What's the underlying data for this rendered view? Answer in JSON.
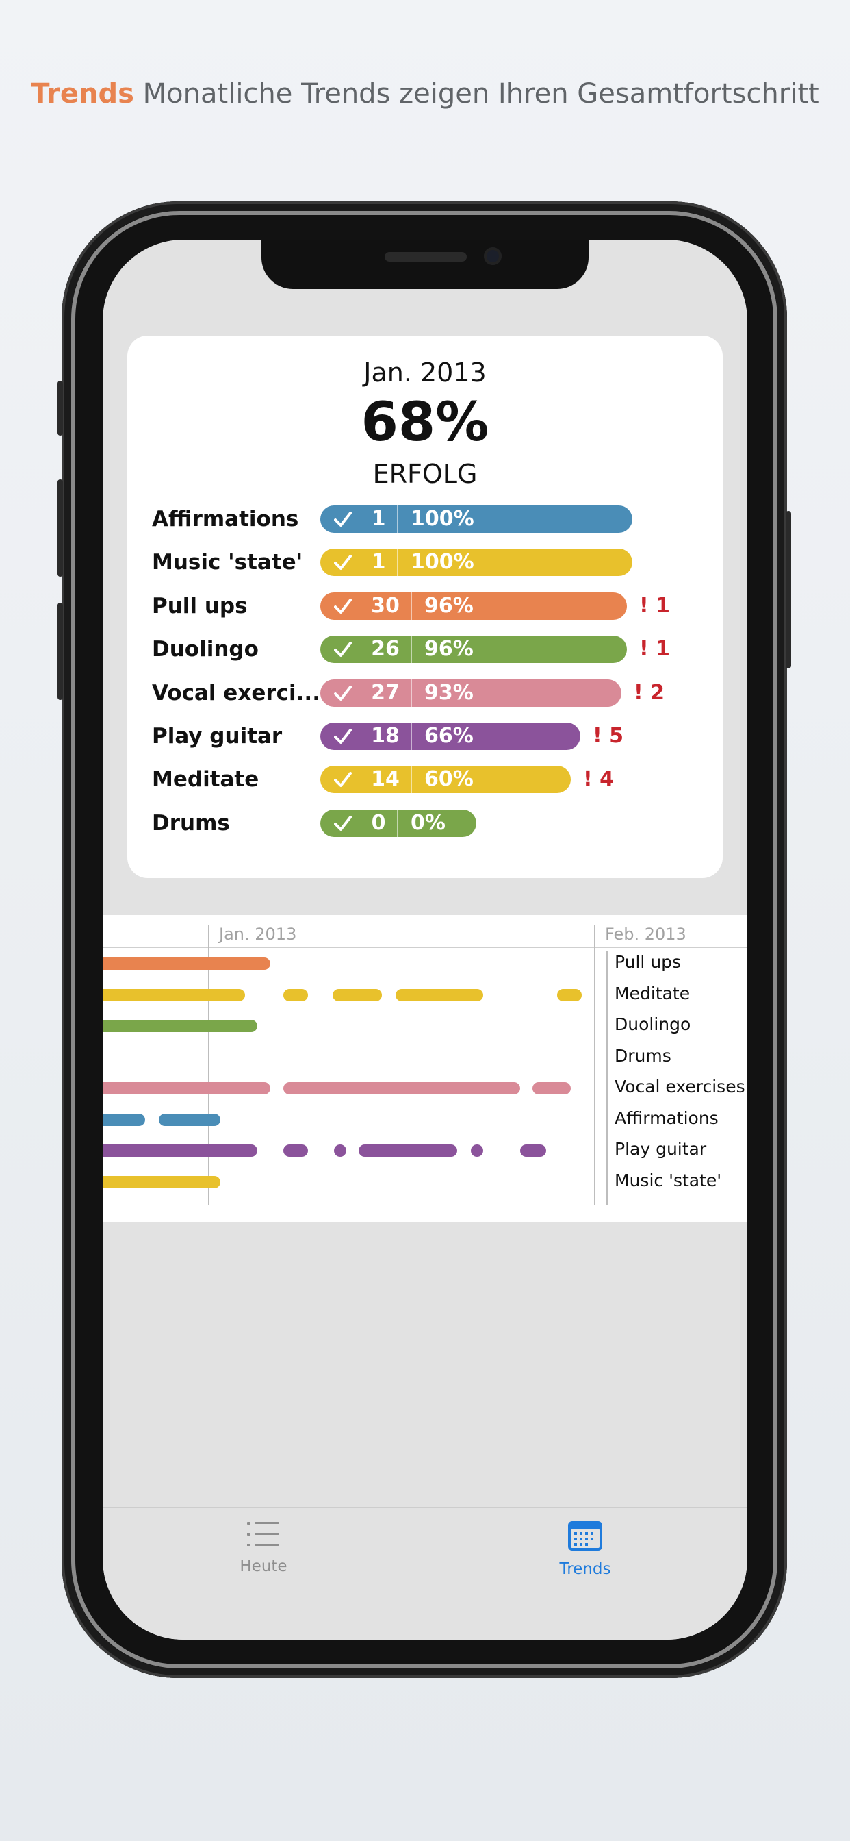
{
  "headline": {
    "accent": "Trends",
    "text": "Monatliche Trends zeigen Ihren Gesamtfortschritt"
  },
  "summary": {
    "month": "Jan. 2013",
    "success_percent": "68%",
    "success_label": "ERFOLG"
  },
  "habits": [
    {
      "name": "Affirmations",
      "count": "1",
      "rate": "100%",
      "missed": "",
      "color": "#4a8db7"
    },
    {
      "name": "Music 'state'",
      "count": "1",
      "rate": "100%",
      "missed": "",
      "color": "#e8c12c"
    },
    {
      "name": "Pull ups",
      "count": "30",
      "rate": "96%",
      "missed": "! 1",
      "color": "#e8834f"
    },
    {
      "name": "Duolingo",
      "count": "26",
      "rate": "96%",
      "missed": "! 1",
      "color": "#7aa64a"
    },
    {
      "name": "Vocal exerci...",
      "count": "27",
      "rate": "93%",
      "missed": "! 2",
      "color": "#d98a97"
    },
    {
      "name": "Play guitar",
      "count": "18",
      "rate": "66%",
      "missed": "! 5",
      "color": "#8b539b"
    },
    {
      "name": "Meditate",
      "count": "14",
      "rate": "60%",
      "missed": "! 4",
      "color": "#e8c12c"
    },
    {
      "name": "Drums",
      "count": "0",
      "rate": "0%",
      "missed": "",
      "color": "#7aa64a"
    }
  ],
  "timeline": {
    "month_labels": [
      "Jan. 2013",
      "Feb. 2013"
    ],
    "rows": [
      {
        "name": "Pull ups",
        "color": "#e8834f"
      },
      {
        "name": "Meditate",
        "color": "#e8c12c"
      },
      {
        "name": "Duolingo",
        "color": "#7aa64a"
      },
      {
        "name": "Drums",
        "color": "#7aa64a"
      },
      {
        "name": "Vocal exercises",
        "color": "#d98a97"
      },
      {
        "name": "Affirmations",
        "color": "#4a8db7"
      },
      {
        "name": "Play guitar",
        "color": "#8b539b"
      },
      {
        "name": "Music 'state'",
        "color": "#e8c12c"
      }
    ]
  },
  "tabbar": {
    "tabs": [
      {
        "label": "Heute",
        "icon": "list-icon",
        "active": false
      },
      {
        "label": "Trends",
        "icon": "calendar-icon",
        "active": true
      }
    ],
    "active_color": "#1f7bdc",
    "inactive_color": "#8e8e8e"
  }
}
